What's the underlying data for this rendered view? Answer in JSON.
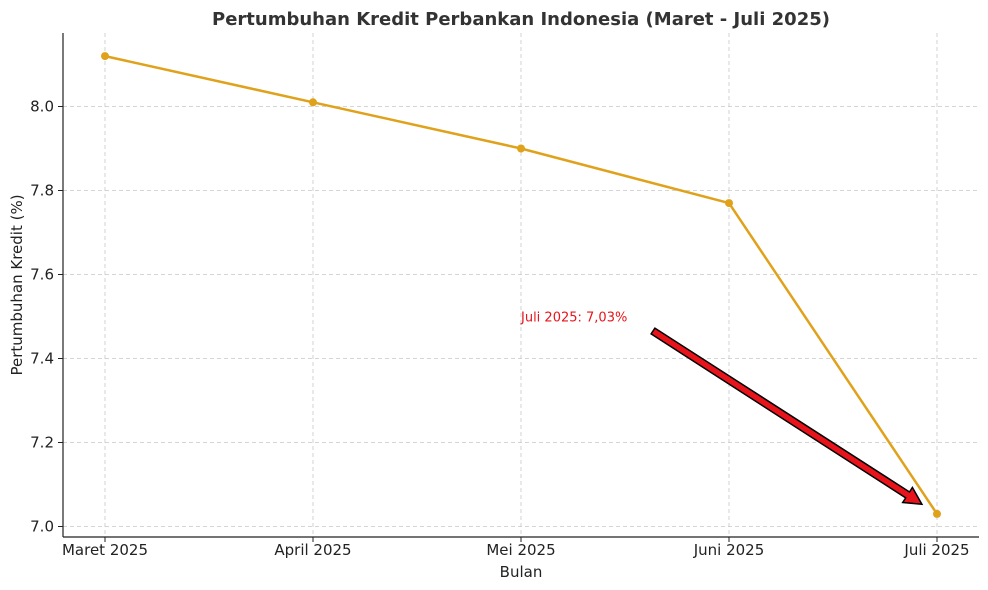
{
  "chart_data": {
    "type": "line",
    "title": "Pertumbuhan Kredit Perbankan Indonesia (Maret - Juli 2025)",
    "xlabel": "Bulan",
    "ylabel": "Pertumbuhan Kredit (%)",
    "categories": [
      "Maret 2025",
      "April 2025",
      "Mei 2025",
      "Juni 2025",
      "Juli 2025"
    ],
    "series": [
      {
        "values": [
          8.12,
          8.01,
          7.9,
          7.77,
          7.03
        ],
        "color": "#e0a11b"
      }
    ],
    "ylim": [
      6.975,
      8.175
    ],
    "yticks": [
      "7.0",
      "7.2",
      "7.4",
      "7.6",
      "7.8",
      "8.0"
    ],
    "grid": true,
    "annotation": {
      "text": "Juli 2025: 7,03%",
      "color": "#e8141c",
      "arrow_fill": "#e8141c",
      "arrow_stroke": "#000000",
      "points_to": "Juli 2025",
      "text_anchor_value": {
        "category": "Mei 2025",
        "y": 7.5
      }
    }
  }
}
